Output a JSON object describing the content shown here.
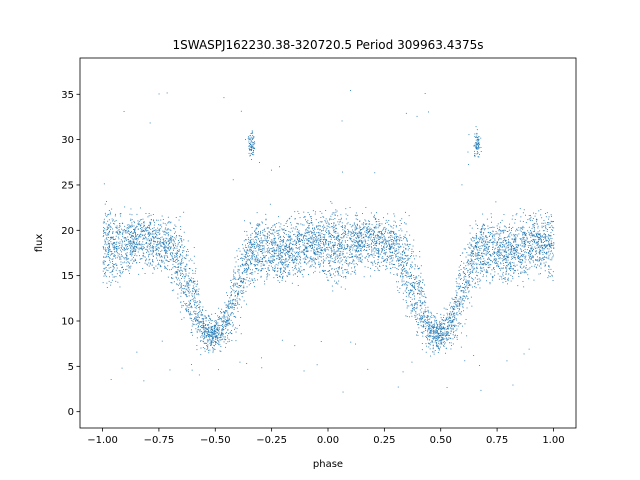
{
  "chart_data": {
    "type": "scatter",
    "title": "1SWASPJ162230.38-320720.5 Period 309963.4375s",
    "xlabel": "phase",
    "ylabel": "flux",
    "xlim": [
      -1.1,
      1.1
    ],
    "ylim": [
      -1.8,
      39.0
    ],
    "x_ticks": [
      -1.0,
      -0.75,
      -0.5,
      -0.25,
      0.0,
      0.25,
      0.5,
      0.75,
      1.0
    ],
    "x_tick_labels": [
      "−1.00",
      "−0.75",
      "−0.50",
      "−0.25",
      "0.00",
      "0.25",
      "0.50",
      "0.75",
      "1.00"
    ],
    "y_ticks": [
      0,
      5,
      10,
      15,
      20,
      25,
      30,
      35
    ],
    "y_tick_labels": [
      "0",
      "5",
      "10",
      "15",
      "20",
      "25",
      "30",
      "35"
    ],
    "grid": false,
    "legend": "none",
    "marker_color": "#1f77b4",
    "series": [
      {
        "phase_fold": "mirrored copy at phase + 1 (x from −1.0 to 1.0)",
        "profile": [
          {
            "x": -1.0,
            "y": 18.5,
            "spread": 3.5
          },
          {
            "x": -0.95,
            "y": 18.0,
            "spread": 3.5
          },
          {
            "x": -0.9,
            "y": 18.0,
            "spread": 3.0
          },
          {
            "x": -0.85,
            "y": 19.0,
            "spread": 2.5
          },
          {
            "x": -0.8,
            "y": 19.0,
            "spread": 2.5
          },
          {
            "x": -0.75,
            "y": 18.5,
            "spread": 2.5
          },
          {
            "x": -0.7,
            "y": 18.0,
            "spread": 3.0
          },
          {
            "x": -0.65,
            "y": 16.0,
            "spread": 4.0
          },
          {
            "x": -0.6,
            "y": 12.5,
            "spread": 4.0
          },
          {
            "x": -0.55,
            "y": 9.0,
            "spread": 2.0
          },
          {
            "x": -0.5,
            "y": 8.5,
            "spread": 1.5
          },
          {
            "x": -0.45,
            "y": 10.0,
            "spread": 2.5
          },
          {
            "x": -0.4,
            "y": 14.0,
            "spread": 4.0
          },
          {
            "x": -0.35,
            "y": 17.5,
            "spread": 3.0
          },
          {
            "x": -0.3,
            "y": 18.0,
            "spread": 2.5
          },
          {
            "x": -0.25,
            "y": 18.0,
            "spread": 3.0
          },
          {
            "x": -0.2,
            "y": 17.5,
            "spread": 3.0
          },
          {
            "x": -0.15,
            "y": 18.0,
            "spread": 3.0
          },
          {
            "x": -0.1,
            "y": 19.0,
            "spread": 3.0
          },
          {
            "x": -0.05,
            "y": 18.5,
            "spread": 3.0
          }
        ],
        "clusters": [
          {
            "x": -0.34,
            "y": 29.5,
            "x_spread": 0.015,
            "y_spread": 1.5
          },
          {
            "x": 0.66,
            "y": 29.5,
            "x_spread": 0.015,
            "y_spread": 1.5
          }
        ]
      }
    ]
  }
}
